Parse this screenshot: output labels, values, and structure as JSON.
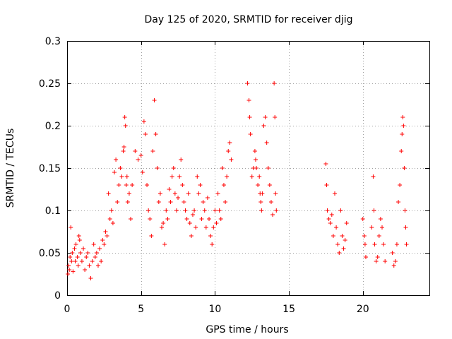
{
  "chart_data": {
    "type": "scatter",
    "title": "Day 125 of 2020, SRMTID for receiver djig",
    "xlabel": "GPS time / hours",
    "ylabel": "SRMTID / TECUs",
    "xlim": [
      0,
      24.5
    ],
    "ylim": [
      0,
      0.3
    ],
    "xticks": [
      0,
      5,
      10,
      15,
      20
    ],
    "xtick_labels": [
      "0",
      "5",
      "10",
      "15",
      "20"
    ],
    "yticks": [
      0,
      0.05,
      0.1,
      0.15,
      0.2,
      0.25,
      0.3
    ],
    "ytick_labels": [
      "0",
      "0.05",
      "0.1",
      "0.15",
      "0.2",
      "0.25",
      "0.3"
    ],
    "grid": true,
    "marker": "+",
    "color": "#ff0000",
    "series": [
      {
        "name": "SRMTID",
        "points": [
          [
            0.05,
            0.025
          ],
          [
            0.1,
            0.035
          ],
          [
            0.15,
            0.03
          ],
          [
            0.2,
            0.045
          ],
          [
            0.25,
            0.08
          ],
          [
            0.3,
            0.04
          ],
          [
            0.35,
            0.05
          ],
          [
            0.4,
            0.028
          ],
          [
            0.5,
            0.055
          ],
          [
            0.55,
            0.04
          ],
          [
            0.6,
            0.06
          ],
          [
            0.7,
            0.045
          ],
          [
            0.75,
            0.035
          ],
          [
            0.8,
            0.07
          ],
          [
            0.85,
            0.065
          ],
          [
            0.9,
            0.05
          ],
          [
            1.0,
            0.04
          ],
          [
            1.1,
            0.055
          ],
          [
            1.2,
            0.03
          ],
          [
            1.3,
            0.045
          ],
          [
            1.4,
            0.05
          ],
          [
            1.5,
            0.035
          ],
          [
            1.6,
            0.02
          ],
          [
            1.7,
            0.04
          ],
          [
            1.8,
            0.06
          ],
          [
            1.9,
            0.045
          ],
          [
            2.0,
            0.05
          ],
          [
            2.1,
            0.035
          ],
          [
            2.2,
            0.055
          ],
          [
            2.3,
            0.04
          ],
          [
            2.4,
            0.065
          ],
          [
            2.5,
            0.06
          ],
          [
            2.6,
            0.075
          ],
          [
            2.7,
            0.07
          ],
          [
            2.8,
            0.12
          ],
          [
            2.9,
            0.09
          ],
          [
            3.0,
            0.1
          ],
          [
            3.1,
            0.085
          ],
          [
            3.2,
            0.145
          ],
          [
            3.3,
            0.16
          ],
          [
            3.4,
            0.11
          ],
          [
            3.5,
            0.13
          ],
          [
            3.6,
            0.15
          ],
          [
            3.7,
            0.14
          ],
          [
            3.8,
            0.17
          ],
          [
            3.85,
            0.175
          ],
          [
            3.9,
            0.21
          ],
          [
            3.95,
            0.2
          ],
          [
            4.0,
            0.13
          ],
          [
            4.05,
            0.14
          ],
          [
            4.1,
            0.11
          ],
          [
            4.2,
            0.12
          ],
          [
            4.3,
            0.09
          ],
          [
            4.4,
            0.13
          ],
          [
            4.6,
            0.17
          ],
          [
            4.8,
            0.16
          ],
          [
            5.0,
            0.165
          ],
          [
            5.1,
            0.145
          ],
          [
            5.2,
            0.205
          ],
          [
            5.3,
            0.19
          ],
          [
            5.4,
            0.13
          ],
          [
            5.5,
            0.1
          ],
          [
            5.6,
            0.09
          ],
          [
            5.7,
            0.07
          ],
          [
            5.8,
            0.17
          ],
          [
            5.9,
            0.23
          ],
          [
            6.0,
            0.19
          ],
          [
            6.1,
            0.15
          ],
          [
            6.2,
            0.11
          ],
          [
            6.3,
            0.12
          ],
          [
            6.4,
            0.08
          ],
          [
            6.5,
            0.085
          ],
          [
            6.6,
            0.06
          ],
          [
            6.7,
            0.1
          ],
          [
            6.8,
            0.09
          ],
          [
            6.9,
            0.125
          ],
          [
            7.0,
            0.11
          ],
          [
            7.1,
            0.14
          ],
          [
            7.2,
            0.15
          ],
          [
            7.3,
            0.12
          ],
          [
            7.4,
            0.1
          ],
          [
            7.5,
            0.115
          ],
          [
            7.6,
            0.14
          ],
          [
            7.7,
            0.16
          ],
          [
            7.8,
            0.13
          ],
          [
            7.9,
            0.11
          ],
          [
            8.0,
            0.1
          ],
          [
            8.1,
            0.09
          ],
          [
            8.2,
            0.12
          ],
          [
            8.3,
            0.085
          ],
          [
            8.4,
            0.07
          ],
          [
            8.5,
            0.095
          ],
          [
            8.6,
            0.1
          ],
          [
            8.7,
            0.08
          ],
          [
            8.8,
            0.14
          ],
          [
            8.9,
            0.12
          ],
          [
            9.0,
            0.13
          ],
          [
            9.1,
            0.09
          ],
          [
            9.2,
            0.11
          ],
          [
            9.3,
            0.1
          ],
          [
            9.4,
            0.08
          ],
          [
            9.5,
            0.115
          ],
          [
            9.6,
            0.09
          ],
          [
            9.7,
            0.07
          ],
          [
            9.8,
            0.06
          ],
          [
            9.9,
            0.08
          ],
          [
            10.0,
            0.1
          ],
          [
            10.1,
            0.085
          ],
          [
            10.2,
            0.12
          ],
          [
            10.3,
            0.1
          ],
          [
            10.4,
            0.09
          ],
          [
            10.5,
            0.15
          ],
          [
            10.6,
            0.13
          ],
          [
            10.7,
            0.11
          ],
          [
            10.8,
            0.14
          ],
          [
            10.9,
            0.17
          ],
          [
            11.0,
            0.18
          ],
          [
            11.1,
            0.16
          ],
          [
            12.2,
            0.25
          ],
          [
            12.3,
            0.23
          ],
          [
            12.35,
            0.21
          ],
          [
            12.4,
            0.19
          ],
          [
            12.5,
            0.14
          ],
          [
            12.6,
            0.15
          ],
          [
            12.7,
            0.17
          ],
          [
            12.75,
            0.16
          ],
          [
            12.8,
            0.15
          ],
          [
            12.9,
            0.13
          ],
          [
            13.0,
            0.14
          ],
          [
            13.05,
            0.12
          ],
          [
            13.1,
            0.11
          ],
          [
            13.15,
            0.1
          ],
          [
            13.2,
            0.12
          ],
          [
            13.3,
            0.2
          ],
          [
            13.4,
            0.21
          ],
          [
            13.5,
            0.18
          ],
          [
            13.6,
            0.15
          ],
          [
            13.7,
            0.13
          ],
          [
            13.8,
            0.11
          ],
          [
            13.9,
            0.095
          ],
          [
            14.0,
            0.25
          ],
          [
            14.05,
            0.21
          ],
          [
            14.1,
            0.12
          ],
          [
            14.15,
            0.1
          ],
          [
            17.5,
            0.155
          ],
          [
            17.55,
            0.13
          ],
          [
            17.6,
            0.1
          ],
          [
            17.7,
            0.09
          ],
          [
            17.8,
            0.085
          ],
          [
            17.9,
            0.095
          ],
          [
            18.0,
            0.07
          ],
          [
            18.1,
            0.12
          ],
          [
            18.2,
            0.08
          ],
          [
            18.3,
            0.06
          ],
          [
            18.4,
            0.05
          ],
          [
            18.5,
            0.1
          ],
          [
            18.6,
            0.07
          ],
          [
            18.7,
            0.055
          ],
          [
            18.8,
            0.065
          ],
          [
            18.9,
            0.085
          ],
          [
            20.0,
            0.09
          ],
          [
            20.1,
            0.07
          ],
          [
            20.15,
            0.06
          ],
          [
            20.2,
            0.045
          ],
          [
            20.6,
            0.08
          ],
          [
            20.7,
            0.14
          ],
          [
            20.75,
            0.1
          ],
          [
            20.8,
            0.06
          ],
          [
            20.9,
            0.04
          ],
          [
            21.0,
            0.045
          ],
          [
            21.1,
            0.07
          ],
          [
            21.2,
            0.09
          ],
          [
            21.3,
            0.08
          ],
          [
            21.4,
            0.06
          ],
          [
            21.5,
            0.04
          ],
          [
            22.0,
            0.05
          ],
          [
            22.1,
            0.035
          ],
          [
            22.2,
            0.04
          ],
          [
            22.3,
            0.06
          ],
          [
            22.4,
            0.11
          ],
          [
            22.5,
            0.13
          ],
          [
            22.6,
            0.17
          ],
          [
            22.65,
            0.19
          ],
          [
            22.7,
            0.21
          ],
          [
            22.75,
            0.2
          ],
          [
            22.8,
            0.15
          ],
          [
            22.85,
            0.1
          ],
          [
            22.9,
            0.08
          ],
          [
            22.95,
            0.06
          ]
        ]
      }
    ]
  }
}
